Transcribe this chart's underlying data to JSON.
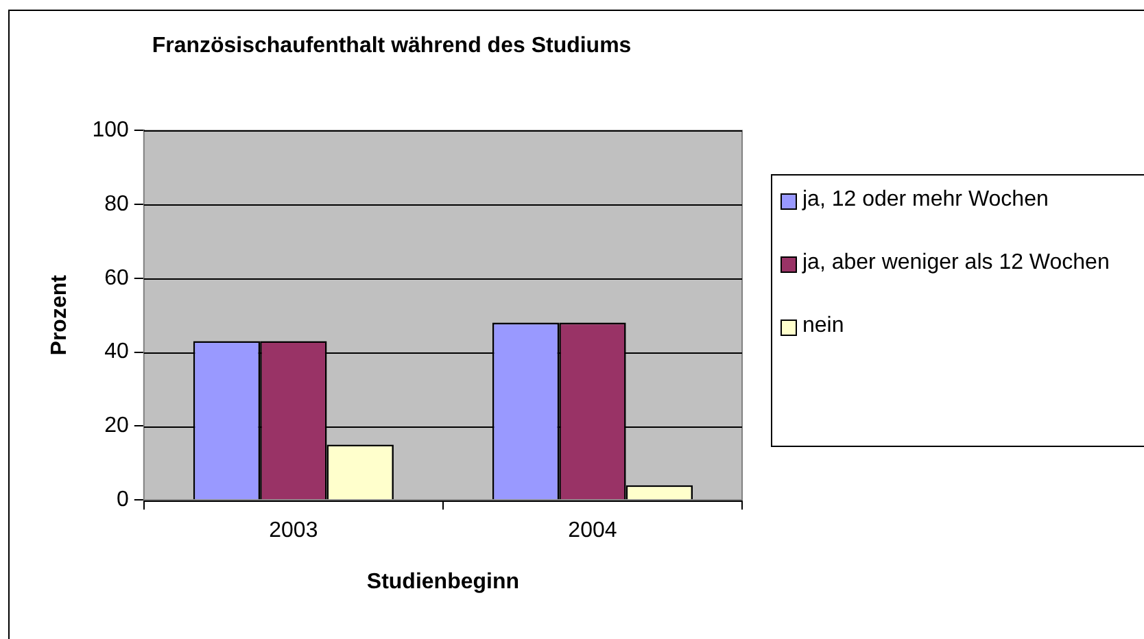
{
  "chart_data": {
    "type": "bar",
    "title": "Französischaufenthalt während des Studiums",
    "xlabel": "Studienbeginn",
    "ylabel": "Prozent",
    "categories": [
      "2003",
      "2004"
    ],
    "series": [
      {
        "name": "ja, 12 oder mehr Wochen",
        "color": "#9999ff",
        "values": [
          43,
          48
        ]
      },
      {
        "name": "ja, aber weniger als 12 Wochen",
        "color": "#993366",
        "values": [
          43,
          48
        ]
      },
      {
        "name": "nein",
        "color": "#ffffcc",
        "values": [
          15,
          4
        ]
      }
    ],
    "ylim": [
      0,
      100
    ],
    "yticks": [
      0,
      20,
      40,
      60,
      80,
      100
    ],
    "grid": "y",
    "legend": "right"
  }
}
